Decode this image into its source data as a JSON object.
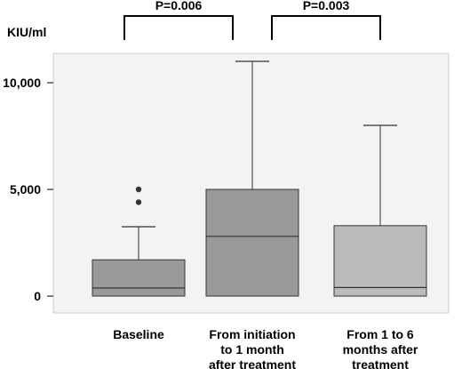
{
  "chart_data": {
    "type": "box",
    "ylabel": "KIU/ml",
    "ylim": [
      0,
      12000
    ],
    "yticks": [
      {
        "value": 0,
        "label": "0"
      },
      {
        "value": 5000,
        "label": "5,000"
      },
      {
        "value": 10000,
        "label": "10,000"
      }
    ],
    "categories": [
      {
        "lines": [
          "Baseline"
        ]
      },
      {
        "lines": [
          "From initiation",
          "to 1 month",
          "after treatment"
        ]
      },
      {
        "lines": [
          "From 1 to 6",
          "months after",
          "treatment"
        ]
      }
    ],
    "boxes": [
      {
        "whisker_low": 0,
        "q1": 0,
        "median": 380,
        "q3": 1700,
        "whisker_high": 3250,
        "outliers": [
          4400,
          5000
        ],
        "color": "#999999"
      },
      {
        "whisker_low": 0,
        "q1": 0,
        "median": 2800,
        "q3": 5000,
        "whisker_high": 11000,
        "outliers": [],
        "color": "#999999"
      },
      {
        "whisker_low": 0,
        "q1": 0,
        "median": 400,
        "q3": 3300,
        "whisker_high": 8000,
        "outliers": [],
        "color": "#bbbbbb"
      }
    ],
    "comparisons": [
      {
        "from": 0,
        "to": 1,
        "label": "P=0.006"
      },
      {
        "from": 1,
        "to": 2,
        "label": "P=0.003"
      }
    ],
    "plot_background": "#f3f3f3",
    "grid": false
  }
}
